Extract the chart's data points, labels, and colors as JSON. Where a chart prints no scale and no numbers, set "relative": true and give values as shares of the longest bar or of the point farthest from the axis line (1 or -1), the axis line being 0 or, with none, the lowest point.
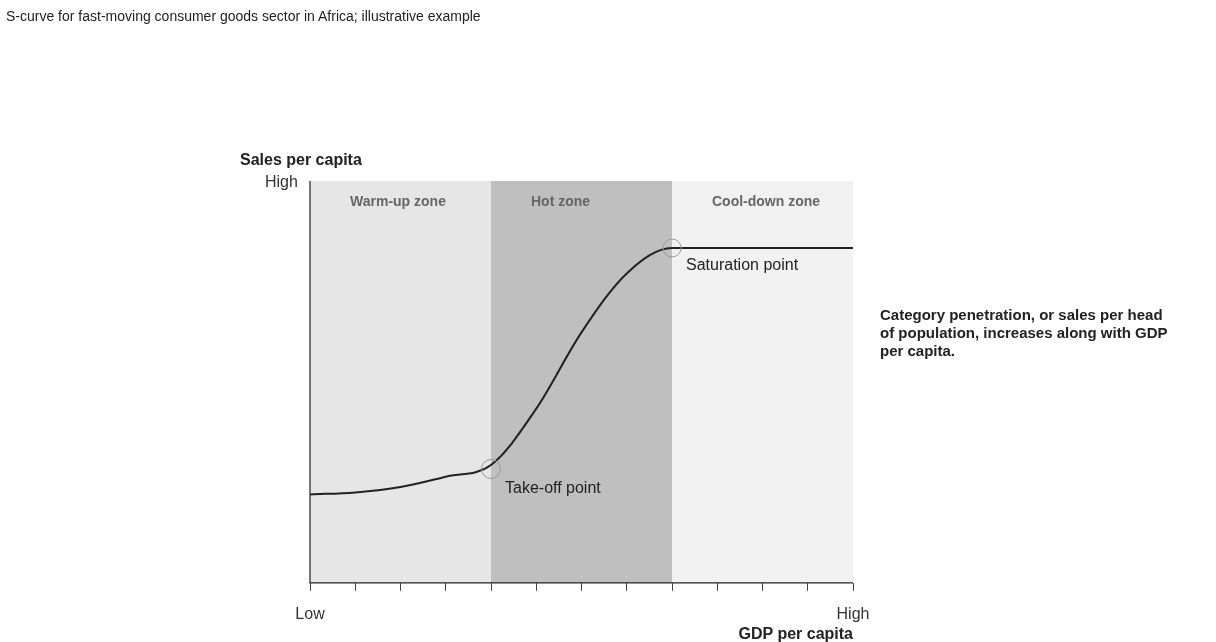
{
  "chart_data": {
    "type": "line",
    "title": "S-curve for fast-moving consumer goods sector in Africa; illustrative example",
    "ylabel": "Sales per capita",
    "xlabel": "GDP per capita",
    "relative": true,
    "categories": [
      "Low",
      null,
      null,
      null,
      null,
      null,
      null,
      null,
      null,
      null,
      null,
      null,
      "High"
    ],
    "series": [
      {
        "color": "#222222",
        "values": [
          0.264,
          0.27,
          0.286,
          0.317,
          0.352,
          0.52,
          0.748,
          0.924,
          1,
          1,
          1,
          1,
          1
        ]
      }
    ],
    "annotations": [
      "High",
      "Warm-up zone",
      "Hot zone",
      "Cool-down zone",
      "Take-off point",
      {
        "text": "Saturation point",
        "y": 1
      },
      "Category penetration, or sales per head of population, increases along with GDP per capita."
    ],
    "grid": false,
    "legend": false,
    "marker": "none",
    "line_style": "solid"
  }
}
